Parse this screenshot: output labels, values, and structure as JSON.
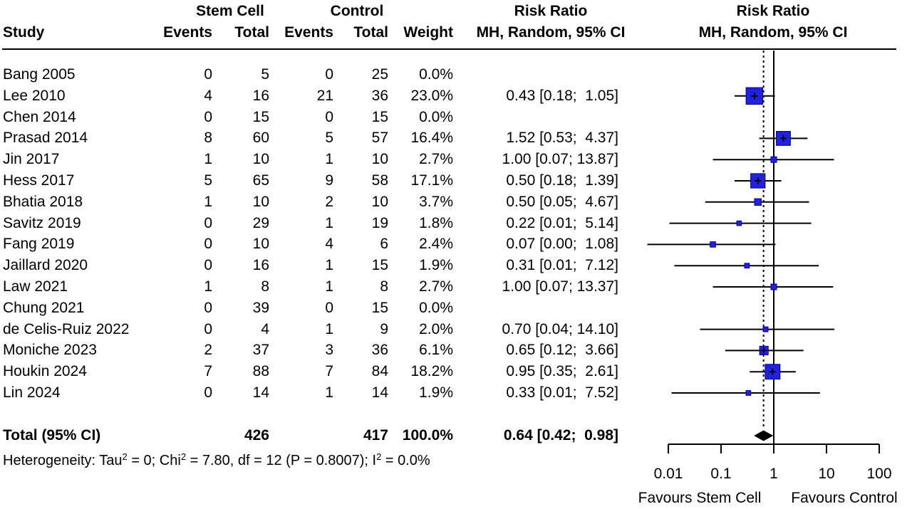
{
  "header": {
    "group_stem_cell": "Stem Cell",
    "group_control": "Control",
    "group_risk_ratio_text": "Risk Ratio",
    "group_risk_ratio_plot": "Risk Ratio",
    "col_study": "Study",
    "col_events_stem": "Events",
    "col_total_stem": "Total",
    "col_events_ctrl": "Events",
    "col_total_ctrl": "Total",
    "col_weight": "Weight",
    "col_ci_text": "MH, Random, 95% CI",
    "col_ci_plot": "MH, Random, 95% CI"
  },
  "chart_data": {
    "type": "forest",
    "x_scale": "log10",
    "x_ticks": [
      0.01,
      0.1,
      1,
      10,
      100
    ],
    "x_tick_labels": [
      "0.01",
      "0.1",
      "1",
      "10",
      "100"
    ],
    "ref_line": 1,
    "pooled_value": 0.64,
    "favours_left": "Favours Stem Cell",
    "favours_right": "Favours Control",
    "effect_label": "Risk Ratio",
    "model_label": "MH, Random, 95% CI",
    "studies": [
      {
        "name": "Bang 2005",
        "events_exp": "0",
        "total_exp": "5",
        "events_ctrl": "0",
        "total_ctrl": "25",
        "weight": "0.0%",
        "weight_val": 0,
        "rr": null,
        "lo": null,
        "hi": null,
        "lo_draw": null,
        "hi_draw": null,
        "ci_text": ""
      },
      {
        "name": "Lee 2010",
        "events_exp": "4",
        "total_exp": "16",
        "events_ctrl": "21",
        "total_ctrl": "36",
        "weight": "23.0%",
        "weight_val": 23.0,
        "rr": 0.43,
        "lo": 0.18,
        "hi": 1.05,
        "lo_draw": 0.18,
        "hi_draw": 1.05,
        "ci_text": "0.43 [0.18;  1.05]"
      },
      {
        "name": "Chen 2014",
        "events_exp": "0",
        "total_exp": "15",
        "events_ctrl": "0",
        "total_ctrl": "15",
        "weight": "0.0%",
        "weight_val": 0,
        "rr": null,
        "lo": null,
        "hi": null,
        "lo_draw": null,
        "hi_draw": null,
        "ci_text": ""
      },
      {
        "name": "Prasad 2014",
        "events_exp": "8",
        "total_exp": "60",
        "events_ctrl": "5",
        "total_ctrl": "57",
        "weight": "16.4%",
        "weight_val": 16.4,
        "rr": 1.52,
        "lo": 0.53,
        "hi": 4.37,
        "lo_draw": 0.53,
        "hi_draw": 4.37,
        "ci_text": "1.52 [0.53;  4.37]"
      },
      {
        "name": "Jin 2017",
        "events_exp": "1",
        "total_exp": "10",
        "events_ctrl": "1",
        "total_ctrl": "10",
        "weight": "2.7%",
        "weight_val": 2.7,
        "rr": 1.0,
        "lo": 0.07,
        "hi": 13.87,
        "lo_draw": 0.07,
        "hi_draw": 13.87,
        "ci_text": "1.00 [0.07; 13.87]"
      },
      {
        "name": "Hess 2017",
        "events_exp": "5",
        "total_exp": "65",
        "events_ctrl": "9",
        "total_ctrl": "58",
        "weight": "17.1%",
        "weight_val": 17.1,
        "rr": 0.5,
        "lo": 0.18,
        "hi": 1.39,
        "lo_draw": 0.18,
        "hi_draw": 1.39,
        "ci_text": "0.50 [0.18;  1.39]"
      },
      {
        "name": "Bhatia 2018",
        "events_exp": "1",
        "total_exp": "10",
        "events_ctrl": "2",
        "total_ctrl": "10",
        "weight": "3.7%",
        "weight_val": 3.7,
        "rr": 0.5,
        "lo": 0.05,
        "hi": 4.67,
        "lo_draw": 0.05,
        "hi_draw": 4.67,
        "ci_text": "0.50 [0.05;  4.67]"
      },
      {
        "name": "Savitz 2019",
        "events_exp": "0",
        "total_exp": "29",
        "events_ctrl": "1",
        "total_ctrl": "19",
        "weight": "1.8%",
        "weight_val": 1.8,
        "rr": 0.22,
        "lo": 0.01,
        "hi": 5.14,
        "lo_draw": 0.0105,
        "hi_draw": 5.14,
        "ci_text": "0.22 [0.01;  5.14]"
      },
      {
        "name": "Fang 2019",
        "events_exp": "0",
        "total_exp": "10",
        "events_ctrl": "4",
        "total_ctrl": "6",
        "weight": "2.4%",
        "weight_val": 2.4,
        "rr": 0.07,
        "lo": 0.0,
        "hi": 1.08,
        "lo_draw": 0.004,
        "hi_draw": 1.08,
        "ci_text": "0.07 [0.00;  1.08]"
      },
      {
        "name": "Jaillard 2020",
        "events_exp": "0",
        "total_exp": "16",
        "events_ctrl": "1",
        "total_ctrl": "15",
        "weight": "1.9%",
        "weight_val": 1.9,
        "rr": 0.31,
        "lo": 0.01,
        "hi": 7.12,
        "lo_draw": 0.013,
        "hi_draw": 7.12,
        "ci_text": "0.31 [0.01;  7.12]"
      },
      {
        "name": "Law 2021",
        "events_exp": "1",
        "total_exp": "8",
        "events_ctrl": "1",
        "total_ctrl": "8",
        "weight": "2.7%",
        "weight_val": 2.7,
        "rr": 1.0,
        "lo": 0.07,
        "hi": 13.37,
        "lo_draw": 0.07,
        "hi_draw": 13.37,
        "ci_text": "1.00 [0.07; 13.37]"
      },
      {
        "name": "Chung 2021",
        "events_exp": "0",
        "total_exp": "39",
        "events_ctrl": "0",
        "total_ctrl": "15",
        "weight": "0.0%",
        "weight_val": 0,
        "rr": null,
        "lo": null,
        "hi": null,
        "lo_draw": null,
        "hi_draw": null,
        "ci_text": ""
      },
      {
        "name": "de Celis-Ruiz 2022",
        "events_exp": "0",
        "total_exp": "4",
        "events_ctrl": "1",
        "total_ctrl": "9",
        "weight": "2.0%",
        "weight_val": 2.0,
        "rr": 0.7,
        "lo": 0.04,
        "hi": 14.1,
        "lo_draw": 0.04,
        "hi_draw": 14.1,
        "ci_text": "0.70 [0.04; 14.10]"
      },
      {
        "name": "Moniche 2023",
        "events_exp": "2",
        "total_exp": "37",
        "events_ctrl": "3",
        "total_ctrl": "36",
        "weight": "6.1%",
        "weight_val": 6.1,
        "rr": 0.65,
        "lo": 0.12,
        "hi": 3.66,
        "lo_draw": 0.12,
        "hi_draw": 3.66,
        "ci_text": "0.65 [0.12;  3.66]"
      },
      {
        "name": "Houkin 2024",
        "events_exp": "7",
        "total_exp": "88",
        "events_ctrl": "7",
        "total_ctrl": "84",
        "weight": "18.2%",
        "weight_val": 18.2,
        "rr": 0.95,
        "lo": 0.35,
        "hi": 2.61,
        "lo_draw": 0.35,
        "hi_draw": 2.61,
        "ci_text": "0.95 [0.35;  2.61]"
      },
      {
        "name": "Lin 2024",
        "events_exp": "0",
        "total_exp": "14",
        "events_ctrl": "1",
        "total_ctrl": "14",
        "weight": "1.9%",
        "weight_val": 1.9,
        "rr": 0.33,
        "lo": 0.01,
        "hi": 7.52,
        "lo_draw": 0.0115,
        "hi_draw": 7.52,
        "ci_text": "0.33 [0.01;  7.52]"
      }
    ],
    "total": {
      "label": "Total (95% CI)",
      "total_exp": "426",
      "total_ctrl": "417",
      "weight": "100.0%",
      "rr": 0.64,
      "lo": 0.42,
      "hi": 0.98,
      "ci_text": "0.64 [0.42;  0.98]"
    },
    "heterogeneity_segments": [
      {
        "t": "Heterogeneity: Tau"
      },
      {
        "t": "2",
        "sup": true
      },
      {
        "t": " = 0; Chi"
      },
      {
        "t": "2",
        "sup": true
      },
      {
        "t": " = 7.80, df = 12 (P = 0.8007); I"
      },
      {
        "t": "2",
        "sup": true
      },
      {
        "t": " = 0.0%"
      }
    ],
    "colors": {
      "square_fill": "#2222DD",
      "square_stroke": "#000099",
      "line": "#000000",
      "diamond": "#000000"
    }
  }
}
